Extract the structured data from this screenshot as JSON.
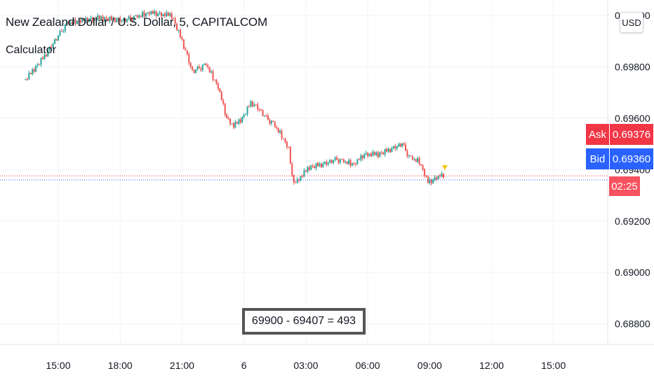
{
  "header": {
    "symbol_title": "New Zealand Dollar / U.S. Dollar, 5, CAPITALCOM",
    "indicator_title": "Calculator"
  },
  "toolbar": {
    "currency_label": "USD"
  },
  "quote": {
    "ask_label": "Ask",
    "ask_value": "0.69376",
    "bid_label": "Bid",
    "bid_value": "0.69360",
    "countdown": "02:25"
  },
  "calculator": {
    "text": "69900 - 69407 = 493"
  },
  "colors": {
    "up": "#26a69a",
    "down": "#ef5350",
    "ask": "#f23645",
    "bid": "#2962ff",
    "grid": "#f0f3fa",
    "axis_text": "#131722",
    "marker": "#f5c518"
  },
  "chart_data": {
    "type": "candlestick",
    "title": "New Zealand Dollar / U.S. Dollar, 5, CAPITALCOM",
    "ylim": [
      0.6872,
      0.7006
    ],
    "y_ticks": [
      "0.68800",
      "0.69000",
      "0.69200",
      "0.69400",
      "0.69600",
      "0.69800",
      "0.70000"
    ],
    "x_ticks": [
      "15:00",
      "18:00",
      "21:00",
      "6",
      "03:00",
      "06:00",
      "09:00",
      "12:00",
      "15:00"
    ],
    "ask_price": 0.69376,
    "bid_price": 0.6936,
    "path": [
      [
        "13:25",
        0.6975
      ],
      [
        "14:25",
        0.6985
      ],
      [
        "15:25",
        0.6997
      ],
      [
        "16:55",
        0.6999
      ],
      [
        "18:10",
        0.6998
      ],
      [
        "19:25",
        0.7001
      ],
      [
        "20:30",
        0.7
      ],
      [
        "21:00",
        0.699
      ],
      [
        "21:30",
        0.6978
      ],
      [
        "22:10",
        0.6981
      ],
      [
        "22:45",
        0.6972
      ],
      [
        "23:10",
        0.696
      ],
      [
        "23:30",
        0.6957
      ],
      [
        "23:55",
        0.696
      ],
      [
        "00:20",
        0.6966
      ],
      [
        "00:40",
        0.6964
      ],
      [
        "01:05",
        0.696
      ],
      [
        "01:25",
        0.6958
      ],
      [
        "01:50",
        0.6953
      ],
      [
        "02:10",
        0.6948
      ],
      [
        "02:20",
        0.6937
      ],
      [
        "02:30",
        0.6935
      ],
      [
        "03:10",
        0.6941
      ],
      [
        "03:50",
        0.6942
      ],
      [
        "04:30",
        0.6944
      ],
      [
        "05:20",
        0.6942
      ],
      [
        "05:50",
        0.6946
      ],
      [
        "06:30",
        0.6946
      ],
      [
        "07:10",
        0.6948
      ],
      [
        "07:40",
        0.695
      ],
      [
        "08:00",
        0.6945
      ],
      [
        "08:30",
        0.6943
      ],
      [
        "08:55",
        0.6935
      ],
      [
        "09:10",
        0.6936
      ],
      [
        "09:30",
        0.6938
      ],
      [
        "09:40",
        0.6937
      ]
    ],
    "noise": [
      0.2,
      -0.5,
      0.8,
      -0.3,
      0.6,
      -0.9,
      0.4,
      0.1,
      -0.7,
      0.9,
      -0.2,
      0.5,
      -0.8,
      0.3,
      0.7,
      -0.4,
      0.0,
      0.6,
      -0.6,
      0.2,
      0.8,
      -0.1,
      -0.9,
      0.4,
      0.5,
      -0.3,
      0.1,
      -0.5,
      0.9,
      -0.7,
      0.3,
      0.2,
      -0.4,
      0.6,
      -0.2,
      0.7,
      -0.8,
      0.0,
      0.4,
      -0.6
    ],
    "calculator_label": "69900 - 69407 = 493"
  }
}
